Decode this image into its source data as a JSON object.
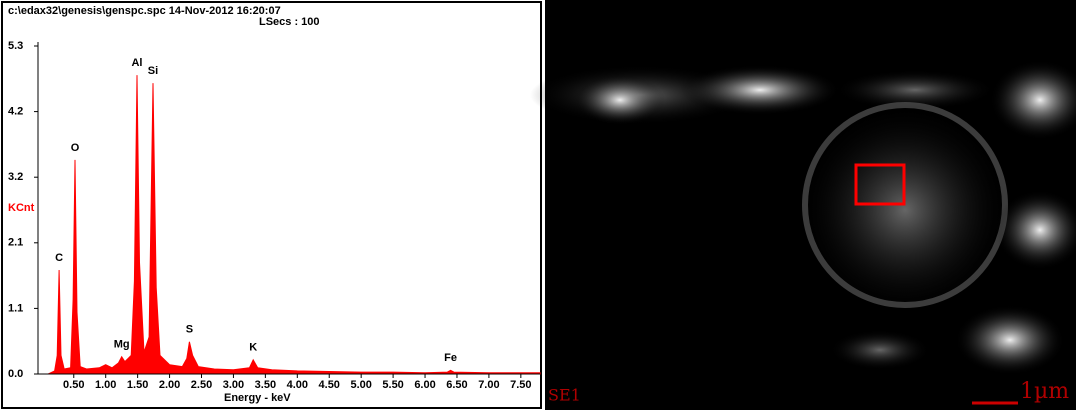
{
  "chart_data": {
    "type": "area",
    "header": "c:\\edax32\\genesis\\genspc.spc  14-Nov-2012 16:20:07",
    "subheader": "LSecs : 100",
    "ylabel": "KCnt",
    "xlabel": "Energy - keV",
    "color": "#ff0000",
    "x": [
      0.1,
      0.2,
      0.24,
      0.27,
      0.3,
      0.35,
      0.45,
      0.49,
      0.52,
      0.55,
      0.6,
      0.7,
      0.9,
      1.0,
      1.1,
      1.2,
      1.25,
      1.3,
      1.4,
      1.45,
      1.49,
      1.53,
      1.6,
      1.68,
      1.74,
      1.79,
      1.85,
      2.0,
      2.2,
      2.27,
      2.31,
      2.36,
      2.45,
      2.7,
      3.0,
      3.25,
      3.31,
      3.38,
      3.6,
      4.0,
      4.5,
      5.0,
      5.5,
      6.0,
      6.35,
      6.4,
      6.45,
      7.0,
      7.8
    ],
    "values": [
      0,
      0.05,
      0.3,
      1.68,
      0.3,
      0.08,
      0.1,
      1.2,
      3.46,
      1.0,
      0.12,
      0.08,
      0.1,
      0.15,
      0.1,
      0.18,
      0.28,
      0.2,
      0.3,
      1.5,
      4.83,
      1.8,
      0.35,
      0.6,
      4.7,
      1.4,
      0.3,
      0.15,
      0.12,
      0.25,
      0.52,
      0.3,
      0.12,
      0.08,
      0.07,
      0.1,
      0.23,
      0.1,
      0.07,
      0.05,
      0.04,
      0.03,
      0.03,
      0.02,
      0.03,
      0.06,
      0.03,
      0.02,
      0.02
    ],
    "peak_labels": [
      {
        "label": "C",
        "x": 0.27,
        "y": 1.68
      },
      {
        "label": "O",
        "x": 0.52,
        "y": 3.46
      },
      {
        "label": "Mg",
        "x": 1.25,
        "y": 0.28
      },
      {
        "label": "Al",
        "x": 1.49,
        "y": 4.83
      },
      {
        "label": "Si",
        "x": 1.74,
        "y": 4.7
      },
      {
        "label": "S",
        "x": 2.31,
        "y": 0.52
      },
      {
        "label": "K",
        "x": 3.31,
        "y": 0.23
      },
      {
        "label": "Fe",
        "x": 6.4,
        "y": 0.06
      }
    ],
    "xlim": [
      -0.06,
      7.8
    ],
    "ylim": [
      0,
      5.3
    ],
    "xticks": [
      {
        "value": 0.5,
        "label": "0.50"
      },
      {
        "value": 1,
        "label": "1.00"
      },
      {
        "value": 1.5,
        "label": "1.50"
      },
      {
        "value": 2,
        "label": "2.00"
      },
      {
        "value": 2.5,
        "label": "2.50"
      },
      {
        "value": 3,
        "label": "3.00"
      },
      {
        "value": 3.5,
        "label": "3.50"
      },
      {
        "value": 4,
        "label": "4.00"
      },
      {
        "value": 4.5,
        "label": "4.50"
      },
      {
        "value": 5,
        "label": "5.00"
      },
      {
        "value": 5.5,
        "label": "5.50"
      },
      {
        "value": 6,
        "label": "6.00"
      },
      {
        "value": 6.5,
        "label": "6.50"
      },
      {
        "value": 7,
        "label": "7.00"
      },
      {
        "value": 7.5,
        "label": "7.50"
      }
    ],
    "yticks": [
      {
        "value": 0,
        "label": "0.0"
      },
      {
        "value": 1.06,
        "label": "1.1"
      },
      {
        "value": 2.12,
        "label": "2.1"
      },
      {
        "value": 3.18,
        "label": "3.2"
      },
      {
        "value": 4.24,
        "label": "4.2"
      },
      5.3
    ]
  },
  "image": {
    "detector": "SE1",
    "scale_bar": "1µm"
  }
}
